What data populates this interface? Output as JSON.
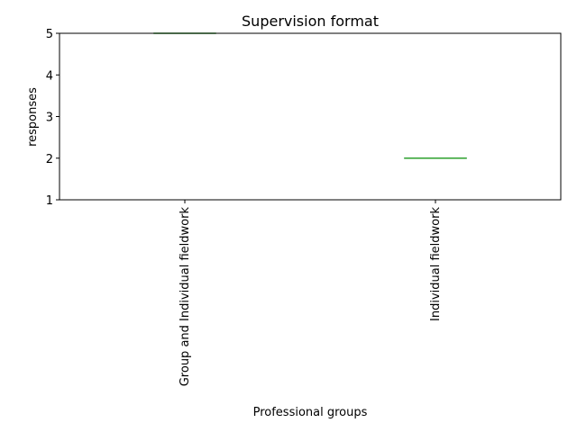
{
  "chart_data": {
    "type": "box",
    "title": "Supervision format",
    "xlabel": "Professional groups",
    "ylabel": "responses",
    "categories": [
      "Group and Individual fieldwork",
      "Individual fieldwork"
    ],
    "values": [
      5,
      2
    ],
    "ylim": [
      1,
      5
    ],
    "yticks": [
      "1",
      "2",
      "3",
      "4",
      "5"
    ],
    "median_color": "#2ca02c",
    "box_color": "#1f77b4",
    "grid": false,
    "legend": "none"
  }
}
